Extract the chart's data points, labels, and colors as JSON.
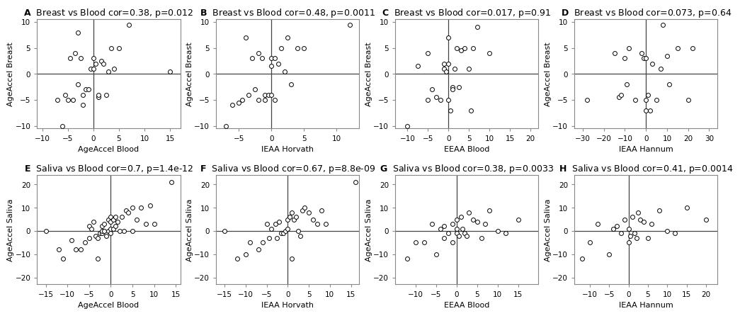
{
  "panels": [
    {
      "label": "A",
      "title": "  Breast vs Blood cor=0.38, p=0.012",
      "xlabel": "AgeAccel Blood",
      "ylabel": "AgeAccel Breast",
      "xlim": [
        -11,
        17
      ],
      "ylim": [
        -10.5,
        10.5
      ],
      "xticks": [
        -10,
        -5,
        0,
        5,
        10,
        15
      ],
      "yticks": [
        -10,
        -5,
        0,
        5,
        10
      ],
      "x": [
        -7,
        -6,
        -5.5,
        -5,
        -4.5,
        -4,
        -3.5,
        -3,
        -3,
        -2.5,
        -2,
        -2,
        -1.5,
        -1,
        -0.5,
        0,
        0,
        0.5,
        1,
        1,
        1.5,
        2,
        2.5,
        3,
        3.5,
        4,
        5,
        7,
        15
      ],
      "y": [
        -5,
        -10,
        -4,
        -5,
        3,
        -5,
        4,
        8,
        -2,
        3,
        -4,
        -6,
        -3,
        -3,
        1,
        3,
        1,
        2,
        -4.5,
        -4,
        2.5,
        2,
        -4,
        0.5,
        5,
        1,
        5,
        9.5,
        0.5
      ]
    },
    {
      "label": "B",
      "title": "  Breast vs Blood cor=0.48, p=0.0011",
      "xlabel": "IEAA Horvath",
      "ylabel": "AgeAccel Breast",
      "xlim": [
        -8.5,
        13.5
      ],
      "ylim": [
        -10.5,
        10.5
      ],
      "xticks": [
        -5,
        0,
        5,
        10
      ],
      "yticks": [
        -10,
        -5,
        0,
        5,
        10
      ],
      "x": [
        -7,
        -6,
        -5,
        -4.5,
        -4,
        -3.5,
        -3,
        -2.5,
        -2,
        -2,
        -1.5,
        -1,
        -1,
        -0.5,
        0,
        0,
        0,
        0.5,
        0.5,
        1,
        1.5,
        2,
        2.5,
        3,
        4,
        5,
        12
      ],
      "y": [
        -10,
        -6,
        -5.5,
        -5,
        7,
        -4,
        3,
        -3,
        -5,
        4,
        3,
        -4,
        -5,
        -4,
        1.5,
        3,
        -4,
        -5,
        3,
        2,
        5,
        0.5,
        7,
        -2,
        5,
        5,
        9.5
      ]
    },
    {
      "label": "C",
      "title": "  Breast vs Blood cor=0.017, p=0.91",
      "xlabel": "EEAA Blood",
      "ylabel": "AgeAccel Breast",
      "xlim": [
        -13,
        22
      ],
      "ylim": [
        -10.5,
        10.5
      ],
      "xticks": [
        -10,
        -5,
        0,
        5,
        10,
        15,
        20
      ],
      "yticks": [
        -10,
        -5,
        0,
        5,
        10
      ],
      "x": [
        -10,
        -7.5,
        -5,
        -5,
        -4,
        -3,
        -2,
        -1,
        -1,
        -0.5,
        0,
        0,
        0,
        0.5,
        1,
        1,
        1.5,
        2,
        2.5,
        3,
        4,
        5,
        5.5,
        6,
        7,
        10
      ],
      "y": [
        -10,
        1.5,
        -5,
        4,
        -3,
        -4.5,
        -5,
        1,
        2,
        0.5,
        7,
        2,
        -5,
        -7,
        -2.5,
        -3,
        1,
        5,
        -2.5,
        4.5,
        5,
        1,
        -7,
        5,
        9,
        4
      ]
    },
    {
      "label": "D",
      "title": "  Breast vs Blood cor=0.073, p=0.64",
      "xlabel": "IEAA Hannum",
      "ylabel": "AgeAccel Breast",
      "xlim": [
        -34,
        34
      ],
      "ylim": [
        -10.5,
        10.5
      ],
      "xticks": [
        -30,
        -20,
        -10,
        0,
        10,
        20,
        30
      ],
      "yticks": [
        -10,
        -5,
        0,
        5,
        10
      ],
      "x": [
        -28,
        -15,
        -13,
        -12,
        -10,
        -9,
        -8,
        -5,
        -2,
        -1,
        0,
        0,
        0,
        1,
        2,
        3,
        5,
        7,
        8,
        10,
        11,
        15,
        20,
        22
      ],
      "y": [
        -5,
        4,
        -4.5,
        -4,
        3,
        -2,
        5,
        -5,
        4,
        3,
        -5,
        3,
        -7,
        -4,
        -7,
        2,
        -5,
        1,
        9.5,
        3.5,
        -2,
        5,
        -5,
        5
      ]
    },
    {
      "label": "E",
      "title": "  Saliva vs Blood cor=0.7, p=1.4e-12",
      "xlabel": "AgeAccel Blood",
      "ylabel": "AgeAccel Saliva",
      "xlim": [
        -17,
        16
      ],
      "ylim": [
        -23,
        24
      ],
      "xticks": [
        -15,
        -10,
        -5,
        0,
        5,
        10,
        15
      ],
      "yticks": [
        -20,
        -10,
        0,
        10,
        20
      ],
      "x": [
        -15,
        -12,
        -11,
        -9,
        -8,
        -7,
        -6,
        -5,
        -5,
        -4.5,
        -4,
        -3.5,
        -3,
        -3,
        -2.5,
        -2,
        -2,
        -2,
        -1.5,
        -1.5,
        -1,
        -0.5,
        -0.5,
        0,
        0,
        0,
        0,
        0.5,
        0.5,
        1,
        1,
        1.5,
        2,
        2.5,
        3,
        3.5,
        4,
        5,
        5,
        6,
        7,
        8,
        9,
        10,
        14
      ],
      "y": [
        0,
        -8,
        -12,
        -4,
        -8,
        -8,
        -5,
        -3,
        2,
        1,
        4,
        -2,
        -12,
        -3,
        -1,
        -1,
        2,
        0,
        0,
        3,
        -2,
        5,
        0,
        1,
        4,
        6,
        -1,
        5,
        1,
        6,
        2,
        4,
        0,
        6,
        0,
        9,
        8,
        0,
        10,
        5,
        10,
        3,
        11,
        3,
        21
      ]
    },
    {
      "label": "F",
      "title": "  Saliva vs Blood cor=0.67, p=8.8e-09",
      "xlabel": "IEAA Horvath",
      "ylabel": "AgeAccel Saliva",
      "xlim": [
        -17,
        17
      ],
      "ylim": [
        -23,
        24
      ],
      "xticks": [
        -15,
        -10,
        -5,
        0,
        5,
        10,
        15
      ],
      "yticks": [
        -20,
        -10,
        0,
        10,
        20
      ],
      "x": [
        -15,
        -12,
        -10,
        -9,
        -7,
        -6,
        -5,
        -4.5,
        -4,
        -3,
        -2.5,
        -2,
        -1.5,
        -1,
        -0.5,
        0,
        0,
        0.5,
        1,
        1,
        1.5,
        2,
        2.5,
        3,
        3.5,
        4,
        5,
        6,
        7,
        8,
        9,
        16
      ],
      "y": [
        0,
        -12,
        -10,
        -5,
        -8,
        -5,
        3,
        -3,
        1,
        3,
        -3,
        4,
        -1,
        -1,
        0,
        5,
        1,
        6,
        -12,
        8,
        5,
        6,
        0,
        -2,
        9,
        10,
        8,
        5,
        3,
        9,
        3,
        21
      ]
    },
    {
      "label": "G",
      "title": "  Saliva vs Blood cor=0.38, p=0.0033",
      "xlabel": "EEAA Blood",
      "ylabel": "AgeAccel Saliva",
      "xlim": [
        -15,
        20
      ],
      "ylim": [
        -23,
        24
      ],
      "xticks": [
        -10,
        -5,
        0,
        5,
        10,
        15
      ],
      "yticks": [
        -20,
        -10,
        0,
        10,
        20
      ],
      "x": [
        -12,
        -10,
        -8,
        -6,
        -5,
        -4,
        -3,
        -3,
        -2,
        -1,
        -1,
        0,
        0,
        0,
        0.5,
        1,
        1.5,
        2,
        2.5,
        3,
        4,
        5,
        6,
        7,
        8,
        10,
        12,
        15
      ],
      "y": [
        -12,
        -5,
        -5,
        3,
        -10,
        1,
        2,
        -3,
        -1,
        3,
        -5,
        -1,
        5,
        1,
        -2,
        6,
        1,
        -1,
        -2,
        8,
        5,
        4,
        -3,
        3,
        9,
        0,
        -1,
        5
      ]
    },
    {
      "label": "H",
      "title": "  Saliva vs Blood cor=0.41, p=0.0014",
      "xlabel": "IEAA Hannum",
      "ylabel": "AgeAccel Saliva",
      "xlim": [
        -14,
        23
      ],
      "ylim": [
        -23,
        24
      ],
      "xticks": [
        -10,
        -5,
        0,
        5,
        10,
        15,
        20
      ],
      "yticks": [
        -20,
        -10,
        0,
        10,
        20
      ],
      "x": [
        -12,
        -10,
        -8,
        -5,
        -4,
        -3,
        -2,
        -1,
        0,
        0,
        0.5,
        1,
        1.5,
        2,
        2.5,
        3,
        4,
        5,
        6,
        8,
        10,
        12,
        15,
        20
      ],
      "y": [
        -12,
        -5,
        3,
        -10,
        1,
        2,
        -1,
        5,
        -5,
        1,
        -2,
        6,
        -1,
        -3,
        8,
        5,
        4,
        -3,
        3,
        9,
        0,
        -1,
        10,
        5
      ]
    }
  ],
  "marker_size": 18,
  "marker_color": "white",
  "marker_edgecolor": "black",
  "marker_edgewidth": 0.7,
  "marker_style": "o",
  "title_fontsize": 9,
  "label_fontsize": 8,
  "tick_fontsize": 7.5,
  "background_color": "white",
  "axisline_color": "#444444",
  "spine_color": "#888888"
}
